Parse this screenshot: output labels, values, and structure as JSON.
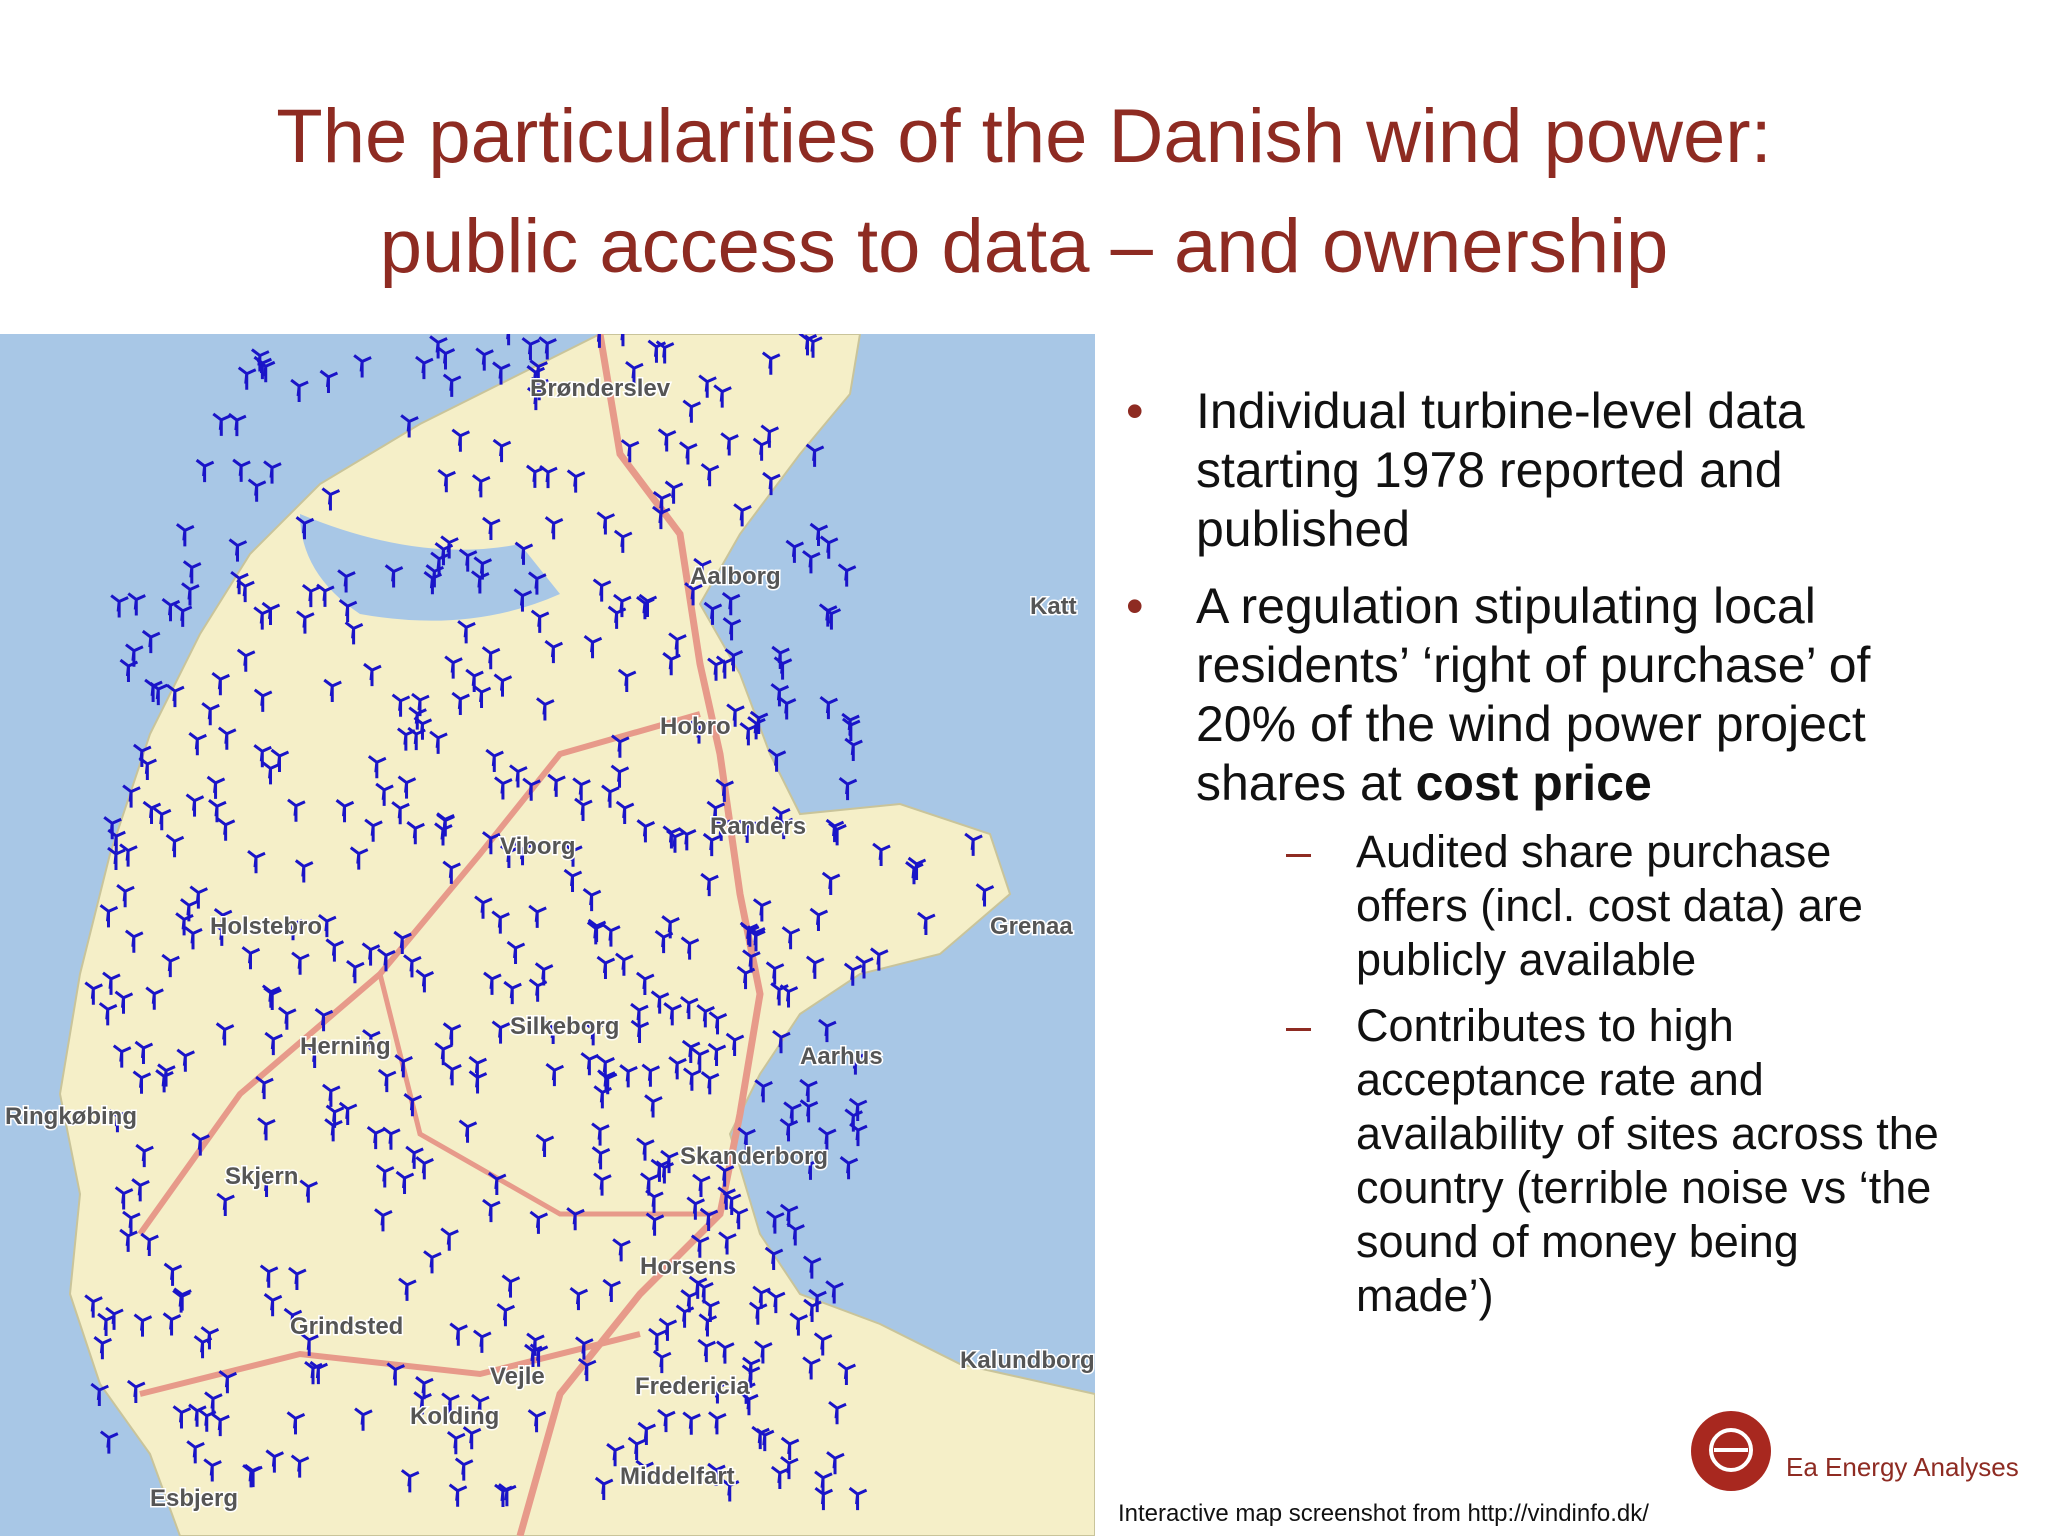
{
  "slide": {
    "title": [
      "The particularities of the Danish wind power:",
      "public access to data – and ownership"
    ],
    "bullets": [
      {
        "text": "Individual turbine-level data starting 1978 reported and published"
      },
      {
        "text": "A regulation stipulating local residents’ ‘right of purchase’ of 20% of the wind power project shares at ",
        "bold": "cost price",
        "sub": [
          "Audited share purchase offers (incl. cost data) are publicly available",
          "Contributes to high acceptance rate and availability of sites across the country (terrible noise vs ‘the sound of money being made’)"
        ]
      }
    ],
    "caption": "Interactive map screenshot from http://vindinfo.dk/",
    "logo": "Ea Energy Analyses",
    "map_labels": [
      "Brønderslev",
      "Aalborg",
      "Katt",
      "Hobro",
      "Randers",
      "Viborg",
      "Grenaa",
      "Holstebro",
      "Herning",
      "Silkeborg",
      "Aarhus",
      "Ringkøbing",
      "Skjern",
      "Skanderborg",
      "Horsens",
      "Grindsted",
      "Vejle",
      "Fredericia",
      "Kolding",
      "Middelfart",
      "Kalundborg",
      "Esbjerg"
    ]
  }
}
